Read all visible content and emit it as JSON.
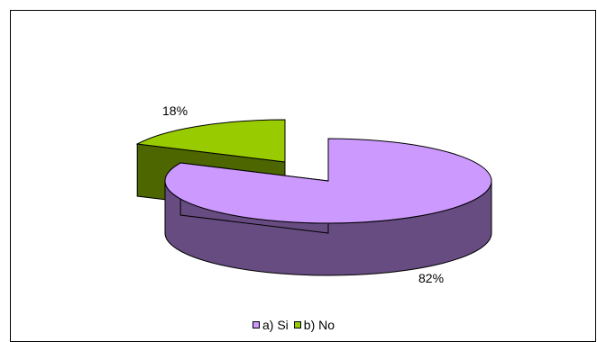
{
  "chart_data": {
    "type": "pie",
    "style": "3d-exploded",
    "categories": [
      "a) Si",
      "b) No"
    ],
    "values": [
      82,
      18
    ],
    "labels": [
      "82%",
      "18%"
    ],
    "colors": {
      "a) Si": {
        "top": "#CC99FF",
        "side": "#664C80"
      },
      "b) No": {
        "top": "#99CC00",
        "side": "#4D6600"
      }
    },
    "legend_position": "bottom",
    "title": ""
  },
  "legend": {
    "items": [
      {
        "label": "a) Si",
        "color": "#CC99FF"
      },
      {
        "label": "b) No",
        "color": "#99CC00"
      }
    ]
  }
}
